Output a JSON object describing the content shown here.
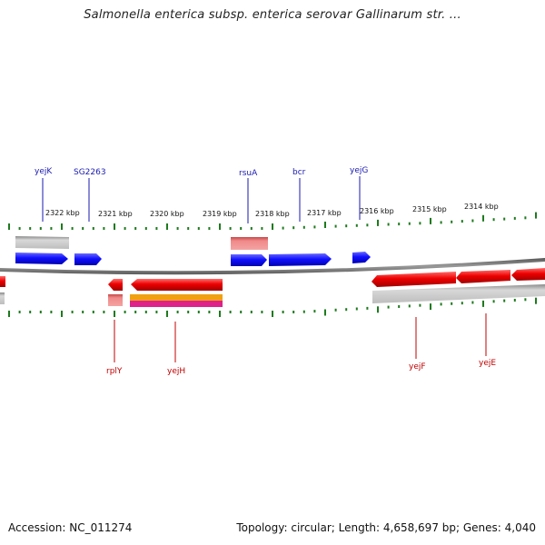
{
  "title": "Salmonella enterica subsp. enterica serovar Gallinarum str. ...",
  "footer": {
    "accession": "Accession: NC_011274",
    "stats": "Topology: circular; Length: 4,658,697 bp; Genes: 4,040"
  },
  "colors": {
    "forward_gene": "#1a1aff",
    "reverse_gene": "#e00000",
    "forward_label": "#1a1ab0",
    "reverse_label": "#c00000",
    "tick": "#1e7a1e",
    "backbone": "#808080"
  },
  "scale": {
    "unit": "kbp",
    "labels": [
      "2322 kbp",
      "2321 kbp",
      "2320 kbp",
      "2319 kbp",
      "2318 kbp",
      "2317 kbp",
      "2316 kbp",
      "2315 kbp",
      "2314 kbp"
    ]
  },
  "genes": {
    "forward": [
      "yejK",
      "SG2263",
      "rsuA",
      "bcr",
      "yejG"
    ],
    "reverse": [
      "rplY",
      "yejH",
      "yejF",
      "yejE"
    ]
  }
}
